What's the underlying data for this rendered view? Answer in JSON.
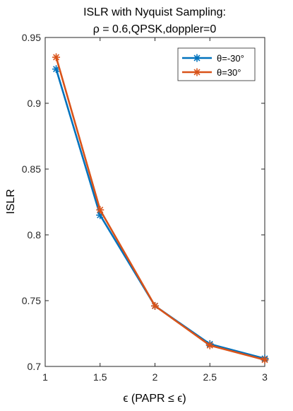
{
  "chart_data": {
    "type": "line",
    "title": "ISLR with Nyquist Sampling:",
    "subtitle": "ρ = 0.6,QPSK,doppler=0",
    "xlabel": "ϵ (PAPR ≤ ϵ)",
    "ylabel": "ISLR",
    "xlim": [
      1,
      3
    ],
    "ylim": [
      0.7,
      0.95
    ],
    "x_ticks": [
      1,
      1.5,
      2,
      2.5,
      3
    ],
    "x_tick_labels": [
      "1",
      "1.5",
      "2",
      "2.5",
      "3"
    ],
    "y_ticks": [
      0.7,
      0.75,
      0.8,
      0.85,
      0.9,
      0.95
    ],
    "y_tick_labels": [
      "0.7",
      "0.75",
      "0.8",
      "0.85",
      "0.9",
      "0.95"
    ],
    "grid": false,
    "legend_position": "top-right",
    "series": [
      {
        "name": "θ=-30°",
        "color": "#0072BD",
        "marker": "asterisk",
        "x": [
          1.1,
          1.5,
          2.0,
          2.5,
          3.0
        ],
        "y": [
          0.926,
          0.815,
          0.746,
          0.717,
          0.706
        ]
      },
      {
        "name": "θ=30°",
        "color": "#D95319",
        "marker": "asterisk",
        "x": [
          1.1,
          1.5,
          2.0,
          2.5,
          3.0
        ],
        "y": [
          0.935,
          0.819,
          0.746,
          0.716,
          0.705
        ]
      }
    ]
  }
}
